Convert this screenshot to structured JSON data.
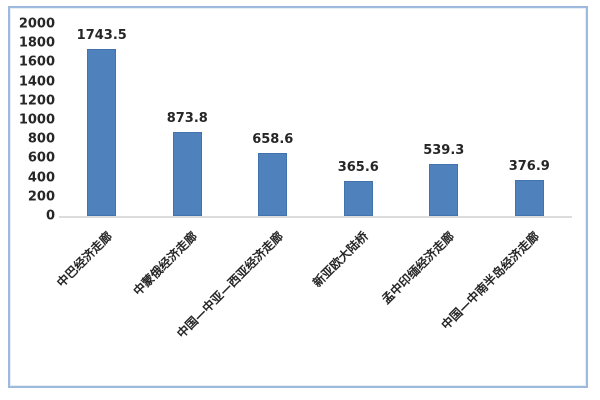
{
  "chart_data": {
    "type": "bar",
    "title": "",
    "xlabel": "",
    "ylabel": "",
    "categories": [
      "中巴经济走廊",
      "中蒙俄经济走廊",
      "中国—中亚—西亚经济走廊",
      "新亚欧大陆桥",
      "孟中印缅经济走廊",
      "中国—中南半岛经济走廊"
    ],
    "values": [
      1743.5,
      873.8,
      658.6,
      365.6,
      539.3,
      376.9
    ],
    "data_labels": [
      "1743.5",
      "873.8",
      "658.6",
      "365.6",
      "539.3",
      "376.9"
    ],
    "ylim": [
      0,
      2000
    ],
    "yticks": [
      "0",
      "200",
      "400",
      "600",
      "800",
      "1000",
      "1200",
      "1400",
      "1600",
      "1800",
      "2000"
    ],
    "grid": false,
    "legend": false,
    "x_label_rotation_deg": 45,
    "colors": {
      "bar_fill": "#4f81bd",
      "bar_border": "#4273ad",
      "axis_line": "#dcdcdc",
      "text": "#262626",
      "frame_border": "#9db9dd",
      "background": "#ffffff"
    }
  }
}
